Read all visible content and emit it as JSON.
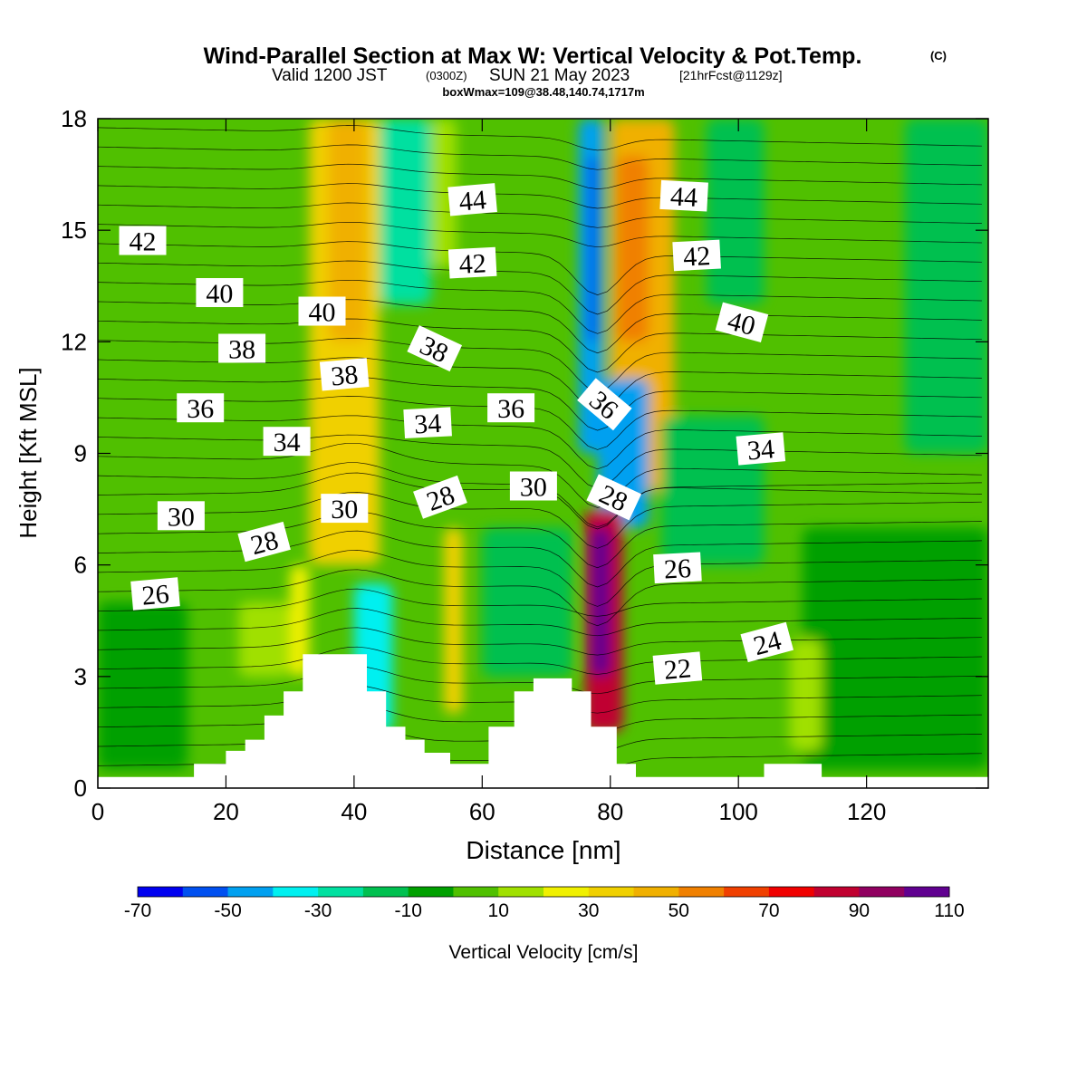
{
  "title": {
    "main": "Wind-Parallel Section at Max W: Vertical Velocity & Pot.Temp.",
    "copyright": "(C)",
    "valid_prefix": "Valid 1200 JST",
    "valid_utc": "(0300Z)",
    "valid_date": "SUN 21 May 2023",
    "forecast": "[21hrFcst@1129z]",
    "box_info": "boxWmax=109@38.48,140.74,1717m"
  },
  "chart_data": {
    "type": "heatmap",
    "xlabel": "Distance [nm]",
    "ylabel": "Height [Kft MSL]",
    "xlim": [
      0,
      139
    ],
    "ylim": [
      0,
      18
    ],
    "x_ticks": [
      "0",
      "20",
      "40",
      "60",
      "80",
      "100",
      "120"
    ],
    "y_ticks": [
      "0",
      "3",
      "6",
      "9",
      "12",
      "15",
      "18"
    ],
    "colorbar": {
      "label": "Vertical Velocity [cm/s]",
      "tick_labels": [
        "-70",
        "-50",
        "-30",
        "-10",
        "10",
        "30",
        "50",
        "70",
        "90",
        "110"
      ],
      "levels": [
        -70,
        -60,
        -50,
        -40,
        -30,
        -20,
        -10,
        0,
        10,
        20,
        30,
        40,
        50,
        60,
        70,
        80,
        90,
        100,
        110,
        120
      ],
      "colors": [
        "#0000f0",
        "#0050f0",
        "#00a0f0",
        "#00f0f0",
        "#00e0a0",
        "#00c050",
        "#00a000",
        "#50c000",
        "#a0e000",
        "#f0f000",
        "#f0d000",
        "#f0b000",
        "#f08000",
        "#f04000",
        "#f00000",
        "#c00030",
        "#900060",
        "#600090"
      ]
    },
    "velocity_cells": [
      {
        "x": [
          33,
          44
        ],
        "y": [
          6,
          18
        ],
        "w": 35
      },
      {
        "x": [
          36,
          42
        ],
        "y": [
          12,
          18
        ],
        "w": 45
      },
      {
        "x": [
          44,
          52
        ],
        "y": [
          13,
          18
        ],
        "w": -25
      },
      {
        "x": [
          52,
          56
        ],
        "y": [
          14,
          18
        ],
        "w": 15
      },
      {
        "x": [
          75,
          79
        ],
        "y": [
          9,
          18
        ],
        "w": -45
      },
      {
        "x": [
          76.5,
          78
        ],
        "y": [
          12,
          17
        ],
        "w": -55
      },
      {
        "x": [
          80,
          90
        ],
        "y": [
          8,
          18
        ],
        "w": 40
      },
      {
        "x": [
          81,
          86
        ],
        "y": [
          12,
          17
        ],
        "w": 55
      },
      {
        "x": [
          78,
          86
        ],
        "y": [
          7,
          11
        ],
        "w": -45
      },
      {
        "x": [
          76,
          82
        ],
        "y": [
          1.5,
          7.5
        ],
        "w": 80
      },
      {
        "x": [
          77,
          80
        ],
        "y": [
          3,
          7
        ],
        "w": 100
      },
      {
        "x": [
          40,
          46
        ],
        "y": [
          1.5,
          5.5
        ],
        "w": -35
      },
      {
        "x": [
          54,
          57
        ],
        "y": [
          2,
          7
        ],
        "w": 35
      },
      {
        "x": [
          60,
          74
        ],
        "y": [
          3,
          7
        ],
        "w": -15
      },
      {
        "x": [
          30,
          33
        ],
        "y": [
          3,
          6
        ],
        "w": 25
      },
      {
        "x": [
          22,
          30
        ],
        "y": [
          3,
          5
        ],
        "w": 15
      },
      {
        "x": [
          88,
          104
        ],
        "y": [
          6,
          10
        ],
        "w": -15
      },
      {
        "x": [
          95,
          104
        ],
        "y": [
          13,
          18
        ],
        "w": -15
      },
      {
        "x": [
          110,
          139
        ],
        "y": [
          0.5,
          7
        ],
        "w": -10
      },
      {
        "x": [
          126,
          139
        ],
        "y": [
          9,
          18
        ],
        "w": -15
      },
      {
        "x": [
          0,
          14
        ],
        "y": [
          0.5,
          5
        ],
        "w": -10
      },
      {
        "x": [
          108,
          113
        ],
        "y": [
          1,
          4
        ],
        "w": 15
      }
    ],
    "terrain": [
      {
        "x": 0,
        "y": 0.3
      },
      {
        "x": 15,
        "y": 0.3
      },
      {
        "x": 15,
        "y": 0.65
      },
      {
        "x": 20,
        "y": 0.65
      },
      {
        "x": 20,
        "y": 1.0
      },
      {
        "x": 23,
        "y": 1.0
      },
      {
        "x": 23,
        "y": 1.3
      },
      {
        "x": 26,
        "y": 1.3
      },
      {
        "x": 26,
        "y": 1.95
      },
      {
        "x": 29,
        "y": 1.95
      },
      {
        "x": 29,
        "y": 2.6
      },
      {
        "x": 32,
        "y": 2.6
      },
      {
        "x": 32,
        "y": 3.6
      },
      {
        "x": 42,
        "y": 3.6
      },
      {
        "x": 42,
        "y": 2.6
      },
      {
        "x": 45,
        "y": 2.6
      },
      {
        "x": 45,
        "y": 1.65
      },
      {
        "x": 48,
        "y": 1.65
      },
      {
        "x": 48,
        "y": 1.3
      },
      {
        "x": 51,
        "y": 1.3
      },
      {
        "x": 51,
        "y": 0.95
      },
      {
        "x": 55,
        "y": 0.95
      },
      {
        "x": 55,
        "y": 0.65
      },
      {
        "x": 61,
        "y": 0.65
      },
      {
        "x": 61,
        "y": 1.65
      },
      {
        "x": 65,
        "y": 1.65
      },
      {
        "x": 65,
        "y": 2.6
      },
      {
        "x": 68,
        "y": 2.6
      },
      {
        "x": 68,
        "y": 2.95
      },
      {
        "x": 74,
        "y": 2.95
      },
      {
        "x": 74,
        "y": 2.6
      },
      {
        "x": 77,
        "y": 2.6
      },
      {
        "x": 77,
        "y": 1.65
      },
      {
        "x": 81,
        "y": 1.65
      },
      {
        "x": 81,
        "y": 0.65
      },
      {
        "x": 84,
        "y": 0.65
      },
      {
        "x": 84,
        "y": 0.3
      },
      {
        "x": 104,
        "y": 0.3
      },
      {
        "x": 104,
        "y": 0.65
      },
      {
        "x": 113,
        "y": 0.65
      },
      {
        "x": 113,
        "y": 0.3
      },
      {
        "x": 139,
        "y": 0.3
      }
    ],
    "contour_labels": [
      {
        "text": "42",
        "x": 7,
        "y": 14.7,
        "rot": 0
      },
      {
        "text": "40",
        "x": 19,
        "y": 13.3,
        "rot": 0
      },
      {
        "text": "38",
        "x": 22.5,
        "y": 11.8,
        "rot": 0
      },
      {
        "text": "36",
        "x": 16,
        "y": 10.2,
        "rot": 0
      },
      {
        "text": "34",
        "x": 29.5,
        "y": 9.3,
        "rot": 0
      },
      {
        "text": "30",
        "x": 13,
        "y": 7.3,
        "rot": 0
      },
      {
        "text": "28",
        "x": 26,
        "y": 6.6,
        "rot": -15
      },
      {
        "text": "26",
        "x": 9,
        "y": 5.2,
        "rot": -5
      },
      {
        "text": "40",
        "x": 35,
        "y": 12.8,
        "rot": 0
      },
      {
        "text": "38",
        "x": 38.5,
        "y": 11.1,
        "rot": -5
      },
      {
        "text": "30",
        "x": 38.5,
        "y": 7.5,
        "rot": 0
      },
      {
        "text": "44",
        "x": 58.5,
        "y": 15.8,
        "rot": -5
      },
      {
        "text": "42",
        "x": 58.5,
        "y": 14.1,
        "rot": -3
      },
      {
        "text": "38",
        "x": 52.5,
        "y": 11.8,
        "rot": 25
      },
      {
        "text": "34",
        "x": 51.5,
        "y": 9.8,
        "rot": -3
      },
      {
        "text": "36",
        "x": 64.5,
        "y": 10.2,
        "rot": 0
      },
      {
        "text": "28",
        "x": 53.5,
        "y": 7.8,
        "rot": -20
      },
      {
        "text": "30",
        "x": 68,
        "y": 8.1,
        "rot": 0
      },
      {
        "text": "36",
        "x": 79,
        "y": 10.3,
        "rot": 40
      },
      {
        "text": "28",
        "x": 80.5,
        "y": 7.8,
        "rot": 25
      },
      {
        "text": "44",
        "x": 91.5,
        "y": 15.9,
        "rot": 3
      },
      {
        "text": "42",
        "x": 93.5,
        "y": 14.3,
        "rot": -3
      },
      {
        "text": "40",
        "x": 100.5,
        "y": 12.5,
        "rot": 15
      },
      {
        "text": "34",
        "x": 103.5,
        "y": 9.1,
        "rot": -5
      },
      {
        "text": "26",
        "x": 90.5,
        "y": 5.9,
        "rot": -3
      },
      {
        "text": "22",
        "x": 90.5,
        "y": 3.2,
        "rot": -5
      },
      {
        "text": "24",
        "x": 104.5,
        "y": 3.9,
        "rot": -15
      }
    ]
  }
}
